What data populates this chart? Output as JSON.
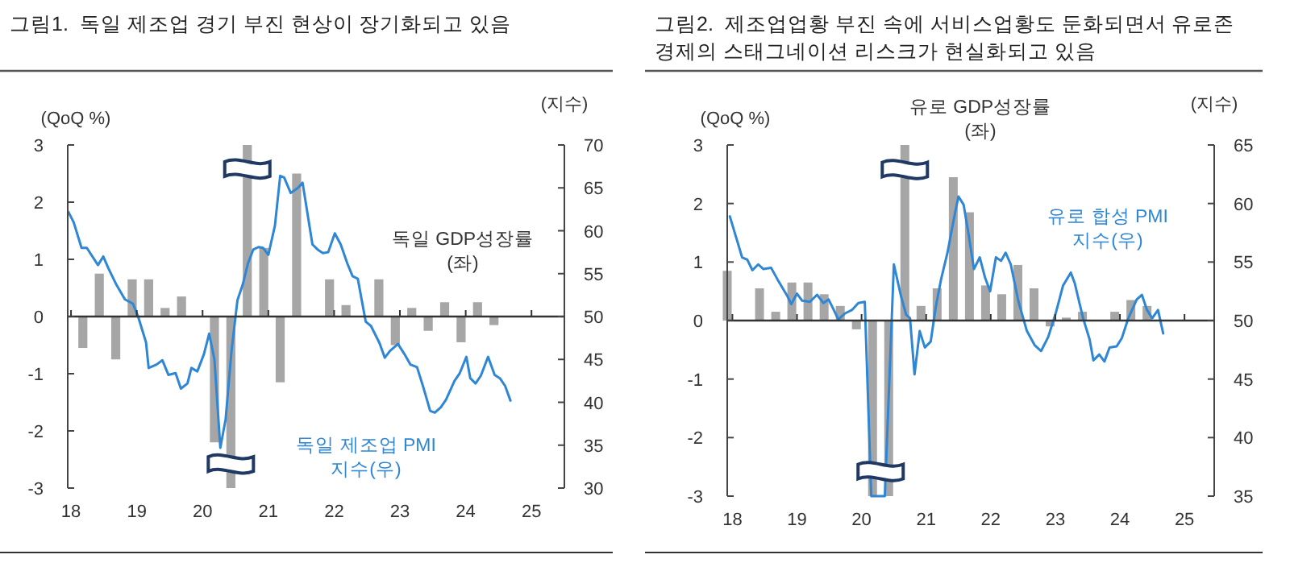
{
  "chart_data": [
    {
      "type": "bar",
      "title": "그림1.  독일 제조업 경기 부진 현상이 장기화되고 있음",
      "ylabel": "(QoQ %)",
      "y2label": "(지수)",
      "xlim": [
        2017.95,
        2025.5
      ],
      "xticks": [
        {
          "value": 2018,
          "label": "18"
        },
        {
          "value": 2019,
          "label": "19"
        },
        {
          "value": 2020,
          "label": "20"
        },
        {
          "value": 2021,
          "label": "21"
        },
        {
          "value": 2022,
          "label": "22"
        },
        {
          "value": 2023,
          "label": "23"
        },
        {
          "value": 2024,
          "label": "24"
        },
        {
          "value": 2025,
          "label": "25"
        }
      ],
      "ylim": [
        -3,
        3
      ],
      "yticks": [
        -3,
        -2,
        -1,
        0,
        1,
        2,
        3
      ],
      "y2lim": [
        30,
        70
      ],
      "y2ticks": [
        30,
        35,
        40,
        45,
        50,
        55,
        60,
        65,
        70
      ],
      "series": [
        {
          "name": "독일 GDP성장률 (좌)",
          "axis": "y",
          "color": "#a6a6a6",
          "x": [
            2018.18,
            2018.43,
            2018.68,
            2018.93,
            2019.18,
            2019.43,
            2019.68,
            2019.93,
            2020.18,
            2020.43,
            2020.68,
            2020.93,
            2021.18,
            2021.43,
            2021.68,
            2021.93,
            2022.18,
            2022.43,
            2022.68,
            2022.93,
            2023.18,
            2023.43,
            2023.68,
            2023.93,
            2024.18,
            2024.43
          ],
          "values": [
            -0.55,
            0.75,
            -0.75,
            0.65,
            0.65,
            0.15,
            0.35,
            0,
            -2.2,
            -3,
            3,
            1.2,
            -1.15,
            2.5,
            0,
            0.65,
            0.2,
            0,
            0.65,
            -0.5,
            0.15,
            -0.25,
            0.25,
            -0.45,
            0.25,
            -0.15
          ]
        },
        {
          "name": "독일 제조업 PMI 지수(우)",
          "type": "line",
          "axis": "y2",
          "color": "#2e86d4",
          "x": [
            2017.96,
            2018.04,
            2018.16,
            2018.24,
            2018.41,
            2018.49,
            2018.57,
            2018.69,
            2018.82,
            2018.94,
            2019.02,
            2019.14,
            2019.18,
            2019.3,
            2019.39,
            2019.48,
            2019.59,
            2019.67,
            2019.77,
            2019.83,
            2019.92,
            2020.02,
            2020.1,
            2020.18,
            2020.27,
            2020.35,
            2020.44,
            2020.53,
            2020.61,
            2020.69,
            2020.77,
            2020.85,
            2020.92,
            2021.0,
            2021.1,
            2021.18,
            2021.24,
            2021.34,
            2021.45,
            2021.52,
            2021.67,
            2021.75,
            2021.83,
            2021.91,
            2022.01,
            2022.1,
            2022.2,
            2022.28,
            2022.36,
            2022.48,
            2022.56,
            2022.69,
            2022.77,
            2022.85,
            2022.97,
            2023.07,
            2023.16,
            2023.26,
            2023.35,
            2023.46,
            2023.53,
            2023.62,
            2023.7,
            2023.83,
            2023.91,
            2024.01,
            2024.07,
            2024.15,
            2024.23,
            2024.34,
            2024.44,
            2024.52,
            2024.6,
            2024.68
          ],
          "values": [
            62.2,
            61,
            58,
            58,
            56,
            57,
            55.6,
            53.7,
            52,
            51.5,
            50,
            47,
            44,
            44.4,
            44.9,
            43.2,
            43.4,
            41.6,
            42.2,
            44,
            43.6,
            45.6,
            48,
            45,
            34.7,
            38,
            46,
            51.9,
            53.7,
            56.2,
            57.8,
            58.1,
            58,
            57.2,
            60.6,
            66.4,
            66.2,
            64.4,
            65,
            65.6,
            58.4,
            57.8,
            57.4,
            57.5,
            59.7,
            58.4,
            56.2,
            54.7,
            54.4,
            49.4,
            48.9,
            46.9,
            45.2,
            46,
            46.8,
            45.6,
            44.4,
            44.1,
            41.9,
            39,
            38.8,
            39.4,
            40.3,
            42.5,
            43.4,
            45.3,
            42.8,
            42.2,
            43.1,
            45.3,
            43.2,
            42.8,
            41.9,
            40.2
          ]
        }
      ]
    },
    {
      "type": "bar",
      "title": "그림2.  제조업업황 부진 속에 서비스업황도 둔화되면서 유로존 경제의 스태그네이션 리스크가 현실화되고 있음",
      "ylabel": "(QoQ %)",
      "y2label": "(지수)",
      "xlim": [
        2017.92,
        2025.46
      ],
      "xticks": [
        {
          "value": 2018,
          "label": "18"
        },
        {
          "value": 2019,
          "label": "19"
        },
        {
          "value": 2020,
          "label": "20"
        },
        {
          "value": 2021,
          "label": "21"
        },
        {
          "value": 2022,
          "label": "22"
        },
        {
          "value": 2023,
          "label": "23"
        },
        {
          "value": 2024,
          "label": "24"
        },
        {
          "value": 2025,
          "label": "25"
        }
      ],
      "ylim": [
        -3,
        3
      ],
      "yticks": [
        -3,
        -2,
        -1,
        0,
        1,
        2,
        3
      ],
      "y2lim": [
        35,
        65
      ],
      "y2ticks": [
        35,
        40,
        45,
        50,
        55,
        60,
        65
      ],
      "series": [
        {
          "name": "유로 GDP성장률 (좌)",
          "axis": "y",
          "color": "#a6a6a6",
          "x": [
            2017.92,
            2018.17,
            2018.42,
            2018.67,
            2018.92,
            2019.17,
            2019.42,
            2019.67,
            2019.92,
            2020.17,
            2020.42,
            2020.67,
            2020.92,
            2021.17,
            2021.42,
            2021.67,
            2021.92,
            2022.17,
            2022.42,
            2022.67,
            2022.92,
            2023.17,
            2023.42,
            2023.67,
            2023.92,
            2024.17,
            2024.42
          ],
          "values": [
            0.85,
            0,
            0.55,
            0.15,
            0.65,
            0.65,
            0.45,
            0.25,
            -0.15,
            -3,
            -3,
            3,
            0.25,
            0.55,
            2.45,
            1.85,
            0.6,
            0.45,
            0.95,
            0.55,
            -0.1,
            0.05,
            0.15,
            0,
            0.15,
            0.35,
            0.25
          ]
        },
        {
          "name": "유로 합성 PMI 지수(우)",
          "type": "line",
          "axis": "y2",
          "color": "#2e86d4",
          "x": [
            2017.96,
            2018.08,
            2018.15,
            2018.23,
            2018.31,
            2018.4,
            2018.48,
            2018.6,
            2018.7,
            2018.85,
            2018.91,
            2019.0,
            2019.08,
            2019.2,
            2019.31,
            2019.41,
            2019.49,
            2019.57,
            2019.64,
            2019.74,
            2019.85,
            2019.95,
            2020.05,
            2020.15,
            2020.36,
            2020.5,
            2020.61,
            2020.69,
            2020.75,
            2020.82,
            2020.9,
            2020.98,
            2021.07,
            2021.15,
            2021.23,
            2021.33,
            2021.44,
            2021.5,
            2021.58,
            2021.65,
            2021.74,
            2021.83,
            2021.91,
            2021.99,
            2022.08,
            2022.16,
            2022.23,
            2022.31,
            2022.43,
            2022.56,
            2022.68,
            2022.78,
            2022.89,
            2023.01,
            2023.12,
            2023.24,
            2023.3,
            2023.43,
            2023.53,
            2023.59,
            2023.68,
            2023.76,
            2023.84,
            2023.95,
            2024.03,
            2024.13,
            2024.26,
            2024.34,
            2024.42,
            2024.5,
            2024.59,
            2024.67
          ],
          "values": [
            58.9,
            56.7,
            55.4,
            55.2,
            54.3,
            54.8,
            54.4,
            54.5,
            53.5,
            52.1,
            51.4,
            52.3,
            51.7,
            51.6,
            52.2,
            51.5,
            51.8,
            50.9,
            50.1,
            50.6,
            50.9,
            51.5,
            51.6,
            35,
            35,
            54.8,
            52.1,
            50.5,
            50.2,
            45.4,
            49.1,
            47.7,
            48.2,
            51.2,
            53.5,
            55.8,
            59,
            60.6,
            59.9,
            57.6,
            54.4,
            55.4,
            53.7,
            52.5,
            55.4,
            55.1,
            55.8,
            54.8,
            51.6,
            49.1,
            47.9,
            47.4,
            48.6,
            50.7,
            53,
            54.1,
            53.2,
            50.2,
            48.4,
            46.6,
            47.1,
            46.5,
            47.7,
            47.8,
            48.5,
            50.2,
            51.8,
            52.2,
            50.9,
            50.2,
            50.9,
            48.9
          ]
        }
      ]
    }
  ]
}
